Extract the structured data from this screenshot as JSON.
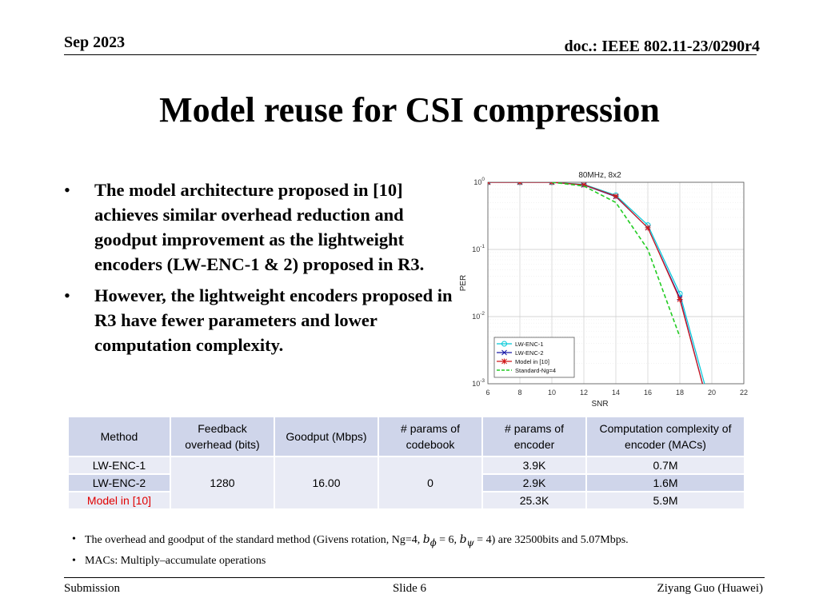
{
  "header": {
    "date": "Sep 2023",
    "doc": "doc.: IEEE 802.11-23/0290r4"
  },
  "title": "Model reuse for CSI compression",
  "bullets": [
    "The model architecture proposed in [10] achieves similar overhead reduction and goodput improvement  as the lightweight encoders (LW-ENC-1 & 2) proposed in R3.",
    "However, the lightweight encoders proposed in R3 have fewer parameters and lower computation complexity."
  ],
  "chart_data": {
    "type": "line",
    "title": "80MHz, 8x2",
    "xlabel": "SNR",
    "ylabel": "PER",
    "xlim": [
      6,
      22
    ],
    "ylim": [
      0.001,
      1
    ],
    "yscale": "log",
    "grid": true,
    "legend_position": "bottom-left",
    "x_ticks": [
      "6",
      "8",
      "10",
      "12",
      "14",
      "16",
      "18",
      "20",
      "22"
    ],
    "y_ticks": [
      {
        "base": "10",
        "exp": "0",
        "value": 1
      },
      {
        "base": "10",
        "exp": "-1",
        "value": 0.1
      },
      {
        "base": "10",
        "exp": "-2",
        "value": 0.01
      },
      {
        "base": "10",
        "exp": "-3",
        "value": 0.001
      }
    ],
    "series": [
      {
        "name": "LW-ENC-1",
        "color": "#00c8d8",
        "marker": "circle",
        "dash": "solid",
        "x": [
          6,
          8,
          10,
          12,
          14,
          16,
          18,
          20
        ],
        "y": [
          1.0,
          1.0,
          1.0,
          0.93,
          0.64,
          0.23,
          0.022,
          0.0004
        ]
      },
      {
        "name": "LW-ENC-2",
        "color": "#1a1aa8",
        "marker": "x",
        "dash": "solid",
        "x": [
          6,
          8,
          10,
          12,
          14,
          16,
          18,
          20
        ],
        "y": [
          1.0,
          1.0,
          1.0,
          0.91,
          0.61,
          0.21,
          0.019,
          0.0003
        ]
      },
      {
        "name": "Model in [10]",
        "color": "#d01818",
        "marker": "star",
        "dash": "solid",
        "x": [
          6,
          8,
          10,
          12,
          14,
          16,
          18,
          20
        ],
        "y": [
          1.0,
          1.0,
          1.0,
          0.92,
          0.62,
          0.21,
          0.018,
          0.0003
        ]
      },
      {
        "name": "Standard-Ng=4",
        "color": "#22cc22",
        "marker": "none",
        "dash": "dashed",
        "x": [
          10,
          12,
          14,
          16,
          18
        ],
        "y": [
          1.0,
          0.88,
          0.5,
          0.1,
          0.005
        ]
      }
    ]
  },
  "table": {
    "headers": [
      "Method",
      "Feedback overhead (bits)",
      "Goodput (Mbps)",
      "# params of codebook",
      "# params of encoder",
      "Computation complexity of encoder (MACs)"
    ],
    "rows": [
      {
        "method": "LW-ENC-1",
        "encoder_params": "3.9K",
        "macs": "0.7M"
      },
      {
        "method": "LW-ENC-2",
        "encoder_params": "2.9K",
        "macs": "1.6M"
      },
      {
        "method": "Model in [10]",
        "encoder_params": "25.3K",
        "macs": "5.9M"
      }
    ],
    "shared": {
      "overhead": "1280",
      "goodput": "16.00",
      "codebook_params": "0"
    }
  },
  "notes": {
    "note1_before": "The overhead and goodput of the standard method (Givens rotation, Ng=4, ",
    "b_phi": "b",
    "phi_sub": "ϕ",
    "b_phi_val": " = 6, ",
    "b_psi": "b",
    "psi_sub": "ψ",
    "b_psi_val": " = 4)",
    "note1_after": "  are 32500bits and 5.07Mbps.",
    "note2": "MACs: Multiply–accumulate operations"
  },
  "colors": {
    "highlight_red": "#e00000",
    "table_header_bg": "#cfd5ea",
    "table_row_bg": "#e9ebf5"
  },
  "footer": {
    "left": "Submission",
    "center": "Slide 6",
    "right": "Ziyang Guo (Huawei)"
  }
}
